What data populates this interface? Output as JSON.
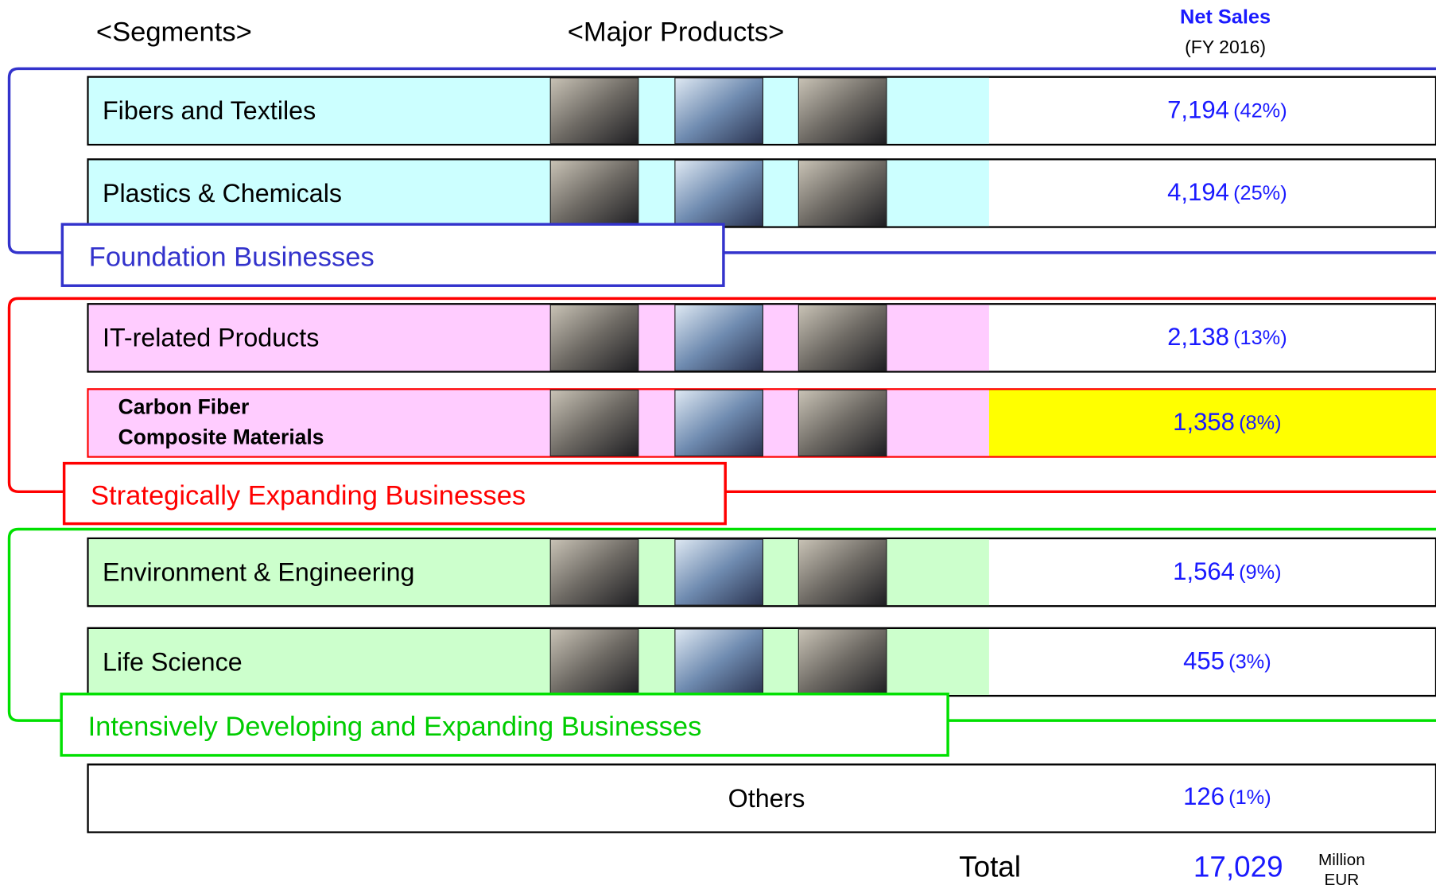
{
  "header": {
    "segments": "<Segments>",
    "products": "<Major Products>",
    "net_sales": "Net Sales",
    "period": "(FY 2016)"
  },
  "groups": [
    {
      "label": "Foundation Businesses",
      "segments": [
        {
          "name": [
            "Fibers and Textiles"
          ],
          "sales": "7,194",
          "share": "(42%)"
        },
        {
          "name": [
            "Plastics & Chemicals"
          ],
          "sales": "4,194",
          "share": "(25%)"
        }
      ]
    },
    {
      "label": "Strategically Expanding Businesses",
      "segments": [
        {
          "name": [
            "IT-related Products"
          ],
          "sales": "2,138",
          "share": "(13%)"
        },
        {
          "name": [
            "Carbon Fiber",
            "Composite Materials"
          ],
          "sales": "1,358",
          "share": "(8%)"
        }
      ]
    },
    {
      "label": "Intensively Developing and Expanding Businesses",
      "segments": [
        {
          "name": [
            "Environment & Engineering"
          ],
          "sales": "1,564",
          "share": "(9%)"
        },
        {
          "name": [
            "Life Science"
          ],
          "sales": "455",
          "share": "(3%)"
        }
      ]
    }
  ],
  "others": {
    "name": "Others",
    "sales": "126",
    "share": "(1%)"
  },
  "total": {
    "label": "Total",
    "value": "17,029",
    "unit": [
      "Million",
      "EUR"
    ]
  }
}
